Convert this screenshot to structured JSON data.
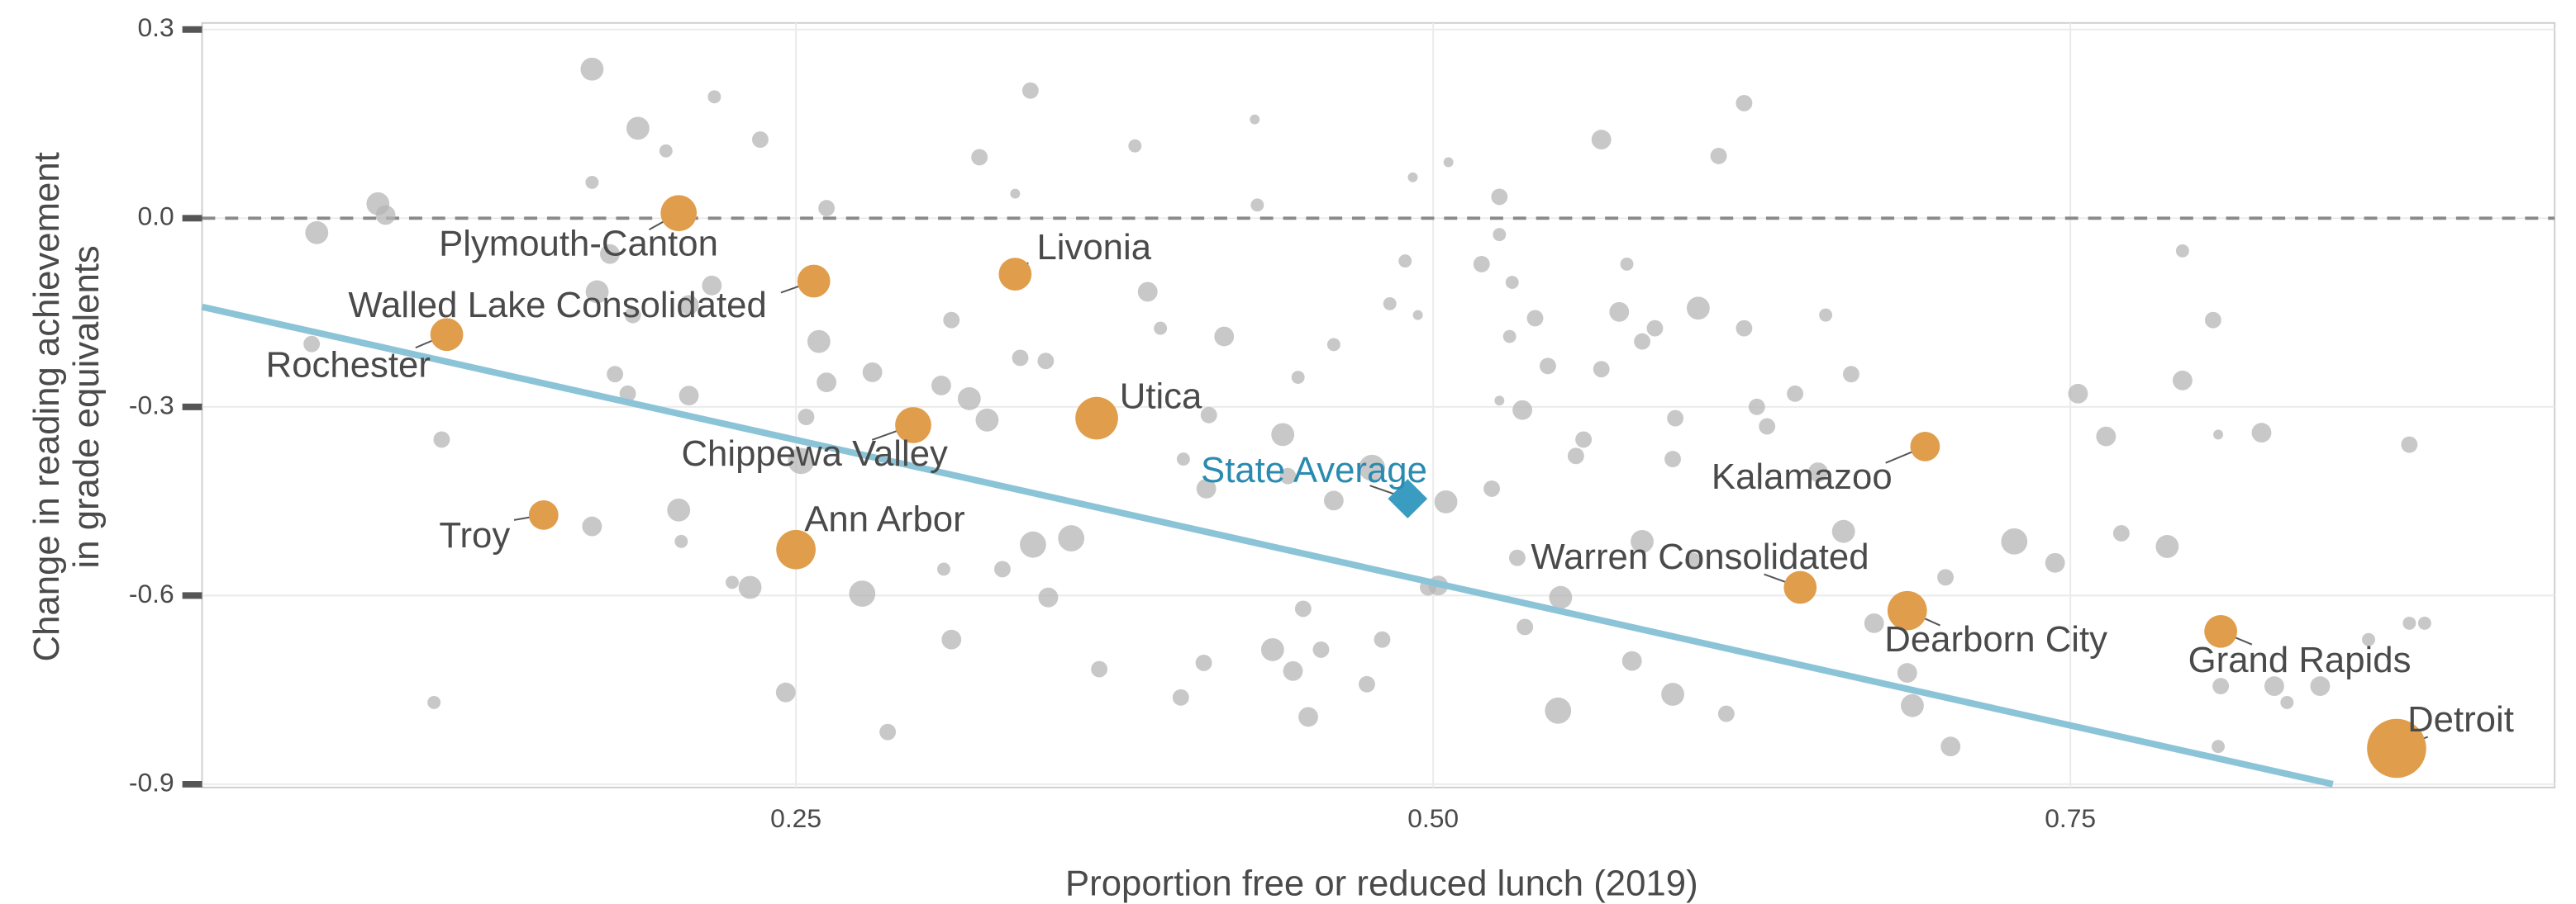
{
  "chart_data": {
    "type": "scatter",
    "x_label": "Proportion free or reduced lunch (2019)",
    "y_label": [
      "Change in reading  achievement",
      "in grade equivalents"
    ],
    "xlim": [
      0.017,
      0.94
    ],
    "ylim": [
      -0.9,
      0.3
    ],
    "xticks": [
      0.25,
      {
        "value": 0.5,
        "label": "0.50"
      },
      0.75
    ],
    "yticks": [
      0.3,
      {
        "value": 0,
        "label": "0.0"
      },
      -0.3,
      -0.6,
      -0.9
    ],
    "grid": true,
    "reference_line": 0,
    "trend_line": {
      "x": [
        0.017,
        0.853
      ],
      "y": [
        -0.141,
        -0.9
      ],
      "color": "#8cc4d7"
    },
    "point_color": "#b5b5b5",
    "points": [
      {
        "x": 0.062,
        "y": -0.023,
        "size": 7
      },
      {
        "x": 0.086,
        "y": 0.023,
        "size": 7
      },
      {
        "x": 0.089,
        "y": 0.005,
        "size": 6
      },
      {
        "x": 0.06,
        "y": -0.2,
        "size": 5
      },
      {
        "x": 0.111,
        "y": -0.352,
        "size": 5
      },
      {
        "x": 0.108,
        "y": -0.77,
        "size": 4
      },
      {
        "x": 0.17,
        "y": 0.237,
        "size": 7
      },
      {
        "x": 0.188,
        "y": 0.143,
        "size": 7
      },
      {
        "x": 0.17,
        "y": 0.057,
        "size": 4
      },
      {
        "x": 0.199,
        "y": 0.107,
        "size": 4
      },
      {
        "x": 0.218,
        "y": 0.193,
        "size": 4
      },
      {
        "x": 0.236,
        "y": 0.125,
        "size": 5
      },
      {
        "x": 0.262,
        "y": 0.016,
        "size": 5
      },
      {
        "x": 0.172,
        "y": -0.117,
        "size": 7
      },
      {
        "x": 0.177,
        "y": -0.057,
        "size": 6
      },
      {
        "x": 0.186,
        "y": -0.154,
        "size": 5
      },
      {
        "x": 0.208,
        "y": -0.138,
        "size": 6
      },
      {
        "x": 0.217,
        "y": -0.107,
        "size": 6
      },
      {
        "x": 0.208,
        "y": -0.282,
        "size": 6
      },
      {
        "x": 0.184,
        "y": -0.279,
        "size": 5
      },
      {
        "x": 0.179,
        "y": -0.248,
        "size": 5
      },
      {
        "x": 0.17,
        "y": -0.49,
        "size": 6
      },
      {
        "x": 0.204,
        "y": -0.464,
        "size": 7
      },
      {
        "x": 0.205,
        "y": -0.514,
        "size": 4
      },
      {
        "x": 0.225,
        "y": -0.579,
        "size": 4
      },
      {
        "x": 0.232,
        "y": -0.587,
        "size": 7
      },
      {
        "x": 0.246,
        "y": -0.754,
        "size": 6
      },
      {
        "x": 0.259,
        "y": -0.196,
        "size": 7
      },
      {
        "x": 0.262,
        "y": -0.261,
        "size": 6
      },
      {
        "x": 0.254,
        "y": -0.316,
        "size": 5
      },
      {
        "x": 0.28,
        "y": -0.245,
        "size": 6
      },
      {
        "x": 0.252,
        "y": -0.386,
        "size": 8
      },
      {
        "x": 0.276,
        "y": -0.597,
        "size": 8
      },
      {
        "x": 0.286,
        "y": -0.817,
        "size": 5
      },
      {
        "x": 0.311,
        "y": -0.162,
        "size": 5
      },
      {
        "x": 0.307,
        "y": -0.266,
        "size": 6
      },
      {
        "x": 0.318,
        "y": -0.287,
        "size": 7
      },
      {
        "x": 0.322,
        "y": 0.097,
        "size": 5
      },
      {
        "x": 0.342,
        "y": 0.203,
        "size": 5
      },
      {
        "x": 0.336,
        "y": 0.039,
        "size": 3
      },
      {
        "x": 0.343,
        "y": -0.519,
        "size": 8
      },
      {
        "x": 0.349,
        "y": -0.603,
        "size": 6
      },
      {
        "x": 0.358,
        "y": -0.509,
        "size": 8
      },
      {
        "x": 0.331,
        "y": -0.558,
        "size": 5
      },
      {
        "x": 0.308,
        "y": -0.558,
        "size": 4
      },
      {
        "x": 0.311,
        "y": -0.67,
        "size": 6
      },
      {
        "x": 0.348,
        "y": -0.227,
        "size": 5
      },
      {
        "x": 0.338,
        "y": -0.222,
        "size": 5
      },
      {
        "x": 0.325,
        "y": -0.321,
        "size": 7
      },
      {
        "x": 0.369,
        "y": -0.717,
        "size": 5
      },
      {
        "x": 0.383,
        "y": 0.115,
        "size": 4
      },
      {
        "x": 0.388,
        "y": -0.117,
        "size": 6
      },
      {
        "x": 0.393,
        "y": -0.175,
        "size": 4
      },
      {
        "x": 0.418,
        "y": -0.188,
        "size": 6
      },
      {
        "x": 0.43,
        "y": 0.157,
        "size": 3
      },
      {
        "x": 0.431,
        "y": 0.021,
        "size": 4
      },
      {
        "x": 0.412,
        "y": -0.313,
        "size": 5
      },
      {
        "x": 0.402,
        "y": -0.383,
        "size": 4
      },
      {
        "x": 0.411,
        "y": -0.43,
        "size": 6
      },
      {
        "x": 0.441,
        "y": -0.344,
        "size": 7
      },
      {
        "x": 0.443,
        "y": -0.41,
        "size": 5
      },
      {
        "x": 0.447,
        "y": -0.253,
        "size": 4
      },
      {
        "x": 0.461,
        "y": -0.449,
        "size": 6
      },
      {
        "x": 0.476,
        "y": -0.397,
        "size": 8
      },
      {
        "x": 0.461,
        "y": -0.201,
        "size": 4
      },
      {
        "x": 0.483,
        "y": -0.136,
        "size": 4
      },
      {
        "x": 0.494,
        "y": -0.154,
        "size": 3
      },
      {
        "x": 0.489,
        "y": -0.068,
        "size": 4
      },
      {
        "x": 0.492,
        "y": 0.065,
        "size": 3
      },
      {
        "x": 0.506,
        "y": 0.089,
        "size": 3
      },
      {
        "x": 0.505,
        "y": -0.451,
        "size": 7
      },
      {
        "x": 0.523,
        "y": -0.43,
        "size": 5
      },
      {
        "x": 0.498,
        "y": -0.587,
        "size": 5
      },
      {
        "x": 0.502,
        "y": -0.584,
        "size": 6
      },
      {
        "x": 0.48,
        "y": -0.67,
        "size": 5
      },
      {
        "x": 0.449,
        "y": -0.621,
        "size": 5
      },
      {
        "x": 0.445,
        "y": -0.72,
        "size": 6
      },
      {
        "x": 0.456,
        "y": -0.686,
        "size": 5
      },
      {
        "x": 0.437,
        "y": -0.686,
        "size": 7
      },
      {
        "x": 0.41,
        "y": -0.707,
        "size": 5
      },
      {
        "x": 0.401,
        "y": -0.762,
        "size": 5
      },
      {
        "x": 0.451,
        "y": -0.793,
        "size": 6
      },
      {
        "x": 0.474,
        "y": -0.741,
        "size": 5
      },
      {
        "x": 0.526,
        "y": -0.29,
        "size": 3
      },
      {
        "x": 0.519,
        "y": -0.073,
        "size": 5
      },
      {
        "x": 0.526,
        "y": -0.026,
        "size": 4
      },
      {
        "x": 0.531,
        "y": -0.102,
        "size": 4
      },
      {
        "x": 0.526,
        "y": 0.034,
        "size": 5
      },
      {
        "x": 0.54,
        "y": -0.159,
        "size": 5
      },
      {
        "x": 0.545,
        "y": -0.235,
        "size": 5
      },
      {
        "x": 0.535,
        "y": -0.305,
        "size": 6
      },
      {
        "x": 0.559,
        "y": -0.352,
        "size": 5
      },
      {
        "x": 0.566,
        "y": -0.24,
        "size": 5
      },
      {
        "x": 0.573,
        "y": -0.149,
        "size": 6
      },
      {
        "x": 0.576,
        "y": -0.073,
        "size": 4
      },
      {
        "x": 0.566,
        "y": 0.125,
        "size": 6
      },
      {
        "x": 0.55,
        "y": -0.603,
        "size": 7
      },
      {
        "x": 0.536,
        "y": -0.65,
        "size": 5
      },
      {
        "x": 0.533,
        "y": -0.54,
        "size": 5
      },
      {
        "x": 0.582,
        "y": -0.514,
        "size": 7
      },
      {
        "x": 0.602,
        "y": -0.545,
        "size": 5
      },
      {
        "x": 0.595,
        "y": -0.318,
        "size": 5
      },
      {
        "x": 0.604,
        "y": -0.143,
        "size": 7
      },
      {
        "x": 0.612,
        "y": 0.099,
        "size": 5
      },
      {
        "x": 0.622,
        "y": 0.183,
        "size": 5
      },
      {
        "x": 0.594,
        "y": -0.757,
        "size": 7
      },
      {
        "x": 0.549,
        "y": -0.783,
        "size": 8
      },
      {
        "x": 0.578,
        "y": -0.704,
        "size": 6
      },
      {
        "x": 0.615,
        "y": -0.788,
        "size": 5
      },
      {
        "x": 0.631,
        "y": -0.331,
        "size": 5
      },
      {
        "x": 0.642,
        "y": -0.279,
        "size": 5
      },
      {
        "x": 0.651,
        "y": -0.404,
        "size": 6
      },
      {
        "x": 0.661,
        "y": -0.498,
        "size": 7
      },
      {
        "x": 0.654,
        "y": -0.154,
        "size": 4
      },
      {
        "x": 0.664,
        "y": -0.248,
        "size": 5
      },
      {
        "x": 0.673,
        "y": -0.644,
        "size": 6
      },
      {
        "x": 0.688,
        "y": -0.775,
        "size": 7
      },
      {
        "x": 0.703,
        "y": -0.84,
        "size": 6
      },
      {
        "x": 0.701,
        "y": -0.571,
        "size": 5
      },
      {
        "x": 0.686,
        "y": -0.723,
        "size": 6
      },
      {
        "x": 0.728,
        "y": -0.514,
        "size": 8
      },
      {
        "x": 0.744,
        "y": -0.548,
        "size": 6
      },
      {
        "x": 0.753,
        "y": -0.279,
        "size": 6
      },
      {
        "x": 0.764,
        "y": -0.347,
        "size": 6
      },
      {
        "x": 0.77,
        "y": -0.501,
        "size": 5
      },
      {
        "x": 0.788,
        "y": -0.522,
        "size": 7
      },
      {
        "x": 0.794,
        "y": -0.258,
        "size": 6
      },
      {
        "x": 0.794,
        "y": -0.052,
        "size": 4
      },
      {
        "x": 0.806,
        "y": -0.162,
        "size": 5
      },
      {
        "x": 0.808,
        "y": -0.344,
        "size": 3
      },
      {
        "x": 0.825,
        "y": -0.341,
        "size": 6
      },
      {
        "x": 0.809,
        "y": -0.744,
        "size": 5
      },
      {
        "x": 0.83,
        "y": -0.744,
        "size": 6
      },
      {
        "x": 0.848,
        "y": -0.744,
        "size": 6
      },
      {
        "x": 0.835,
        "y": -0.77,
        "size": 4
      },
      {
        "x": 0.867,
        "y": -0.67,
        "size": 4
      },
      {
        "x": 0.883,
        "y": -0.644,
        "size": 4
      },
      {
        "x": 0.889,
        "y": -0.644,
        "size": 4
      },
      {
        "x": 0.883,
        "y": -0.36,
        "size": 5
      },
      {
        "x": 0.808,
        "y": -0.84,
        "size": 4
      },
      {
        "x": 0.582,
        "y": -0.196,
        "size": 5
      },
      {
        "x": 0.587,
        "y": -0.175,
        "size": 5
      },
      {
        "x": 0.622,
        "y": -0.175,
        "size": 5
      },
      {
        "x": 0.627,
        "y": -0.3,
        "size": 5
      },
      {
        "x": 0.53,
        "y": -0.188,
        "size": 4
      },
      {
        "x": 0.556,
        "y": -0.378,
        "size": 5
      },
      {
        "x": 0.594,
        "y": -0.383,
        "size": 5
      }
    ],
    "district_color": "#e09e4c",
    "districts": [
      {
        "label": "Plymouth-Canton",
        "x": 0.204,
        "y": 0.008,
        "size": 11
      },
      {
        "label": "Walled Lake Consolidated",
        "x": 0.257,
        "y": -0.1,
        "size": 10
      },
      {
        "label": "Rochester",
        "x": 0.113,
        "y": -0.185,
        "size": 10
      },
      {
        "label": "Livonia",
        "x": 0.336,
        "y": -0.089,
        "size": 10
      },
      {
        "label": "Utica",
        "x": 0.368,
        "y": -0.318,
        "size": 13
      },
      {
        "label": "Chippewa Valley",
        "x": 0.296,
        "y": -0.329,
        "size": 11
      },
      {
        "label": "Troy",
        "x": 0.151,
        "y": -0.472,
        "size": 9
      },
      {
        "label": "Ann Arbor",
        "x": 0.25,
        "y": -0.527,
        "size": 12
      },
      {
        "label": "Kalamazoo",
        "x": 0.693,
        "y": -0.363,
        "size": 9
      },
      {
        "label": "Warren Consolidated",
        "x": 0.644,
        "y": -0.587,
        "size": 10
      },
      {
        "label": "Dearborn City",
        "x": 0.686,
        "y": -0.624,
        "size": 12
      },
      {
        "label": "Grand Rapids",
        "x": 0.809,
        "y": -0.657,
        "size": 10
      },
      {
        "label": "Detroit",
        "x": 0.878,
        "y": -0.843,
        "size": 18
      }
    ],
    "state_average": {
      "label": "State Average",
      "x": 0.49,
      "y": -0.446,
      "color": "#3b9cc2",
      "label_color": "#2a8ab0"
    }
  }
}
